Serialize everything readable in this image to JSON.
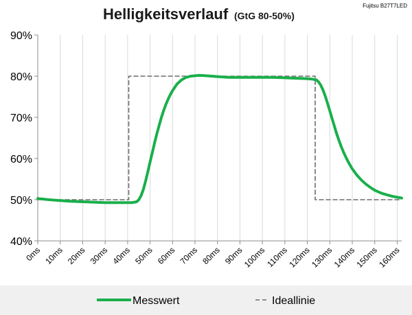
{
  "header": {
    "title": "Helligkeitsverlauf",
    "subtitle": "(GtG 80-50%)",
    "device": "Fujitsu B27T7LED"
  },
  "colors": {
    "measured": "#1aaf4b",
    "ideal": "#6b6b6b",
    "grid": "#d9d9d9",
    "axis": "#8c8c8c",
    "legend_bg": "#f0f0f0"
  },
  "chart_data": {
    "type": "line",
    "title": "Helligkeitsverlauf (GtG 80-50%)",
    "xlabel": "",
    "ylabel": "",
    "xlim": [
      0,
      162
    ],
    "ylim": [
      40,
      90
    ],
    "x_ticks": [
      0,
      10,
      20,
      30,
      40,
      50,
      60,
      70,
      80,
      90,
      100,
      110,
      120,
      130,
      140,
      150,
      160
    ],
    "x_tick_labels": [
      "0ms",
      "10ms",
      "20ms",
      "30ms",
      "40ms",
      "50ms",
      "60ms",
      "70ms",
      "80ms",
      "90ms",
      "100ms",
      "110ms",
      "120ms",
      "130ms",
      "140ms",
      "150ms",
      "160ms"
    ],
    "y_ticks": [
      40,
      50,
      60,
      70,
      80,
      90
    ],
    "y_tick_labels": [
      "40%",
      "50%",
      "60%",
      "70%",
      "80%",
      "90%"
    ],
    "grid": "vertical",
    "legend_position": "bottom",
    "series": [
      {
        "name": "Messwert",
        "style": "solid",
        "x": [
          0,
          5,
          10,
          15,
          20,
          25,
          30,
          35,
          40,
          41,
          42,
          43,
          44,
          45,
          46,
          47,
          48,
          49,
          50,
          51,
          52,
          53,
          54,
          55,
          56,
          57,
          58,
          59,
          60,
          62,
          64,
          66,
          68,
          70,
          72,
          75,
          80,
          85,
          90,
          95,
          100,
          105,
          110,
          115,
          120,
          122,
          124,
          125,
          126,
          127,
          128,
          129,
          130,
          131,
          132,
          133,
          134,
          135,
          136,
          137,
          138,
          139,
          140,
          142,
          144,
          146,
          148,
          150,
          152,
          154,
          156,
          158,
          160,
          162
        ],
        "values": [
          50.3,
          50.0,
          49.8,
          49.6,
          49.5,
          49.4,
          49.3,
          49.3,
          49.3,
          49.3,
          49.3,
          49.4,
          49.5,
          50.0,
          51.0,
          52.5,
          54.5,
          56.8,
          59.2,
          61.5,
          63.8,
          66.0,
          68.0,
          69.9,
          71.6,
          73.1,
          74.4,
          75.5,
          76.5,
          78.1,
          79.1,
          79.7,
          80.0,
          80.1,
          80.2,
          80.1,
          79.9,
          79.7,
          79.7,
          79.7,
          79.7,
          79.7,
          79.6,
          79.5,
          79.4,
          79.3,
          79.1,
          78.6,
          77.8,
          76.6,
          75.1,
          73.4,
          71.6,
          69.7,
          67.9,
          66.1,
          64.5,
          63.0,
          61.7,
          60.5,
          59.4,
          58.4,
          57.5,
          56.0,
          54.8,
          53.8,
          53.0,
          52.3,
          51.8,
          51.4,
          51.1,
          50.8,
          50.6,
          50.4
        ]
      },
      {
        "name": "Ideallinie",
        "style": "dashed",
        "x": [
          0,
          40.5,
          40.5,
          123.5,
          123.5,
          162
        ],
        "values": [
          50,
          50,
          80,
          80,
          50,
          50
        ]
      }
    ]
  }
}
